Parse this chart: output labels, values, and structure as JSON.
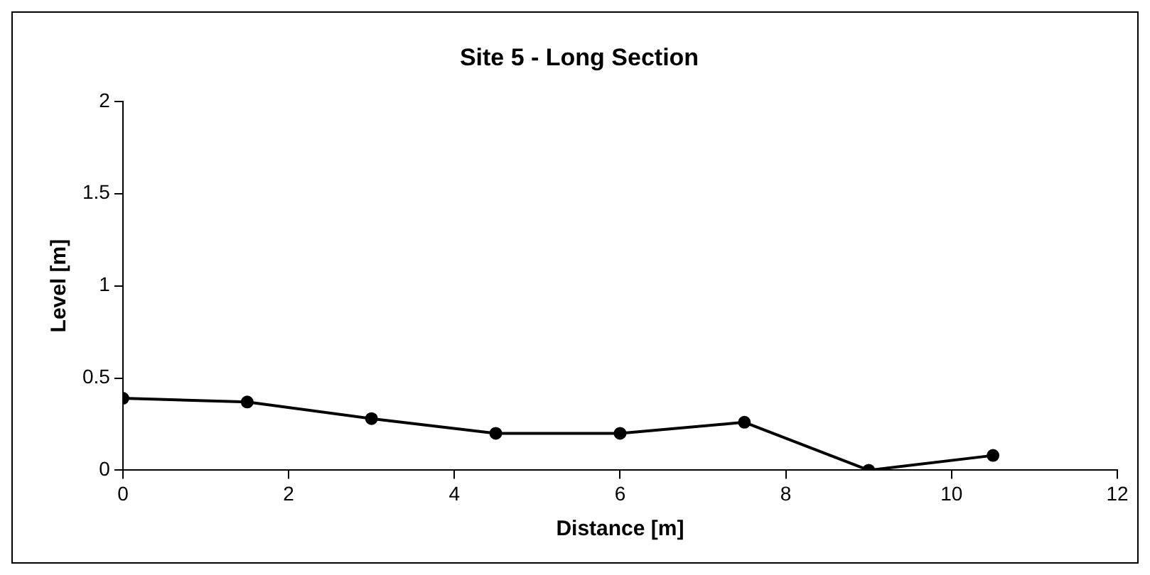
{
  "chart_data": {
    "type": "line",
    "title": "Site 5 - Long Section",
    "xlabel": "Distance [m]",
    "ylabel": "Level [m]",
    "x": [
      0,
      1.5,
      3,
      4.5,
      6,
      7.5,
      9,
      10.5
    ],
    "series": [
      {
        "color": "#000000",
        "values": [
          0.39,
          0.37,
          0.28,
          0.2,
          0.2,
          0.26,
          0,
          0.08
        ]
      }
    ],
    "xlim": [
      0,
      12
    ],
    "xticks": [
      0,
      2,
      4,
      6,
      8,
      10,
      12
    ],
    "ylim": [
      0,
      2
    ],
    "yticks": [
      0,
      0.5,
      1,
      1.5,
      2
    ],
    "grid": false,
    "legend": false,
    "marker": "circle",
    "line_style": "solid"
  }
}
